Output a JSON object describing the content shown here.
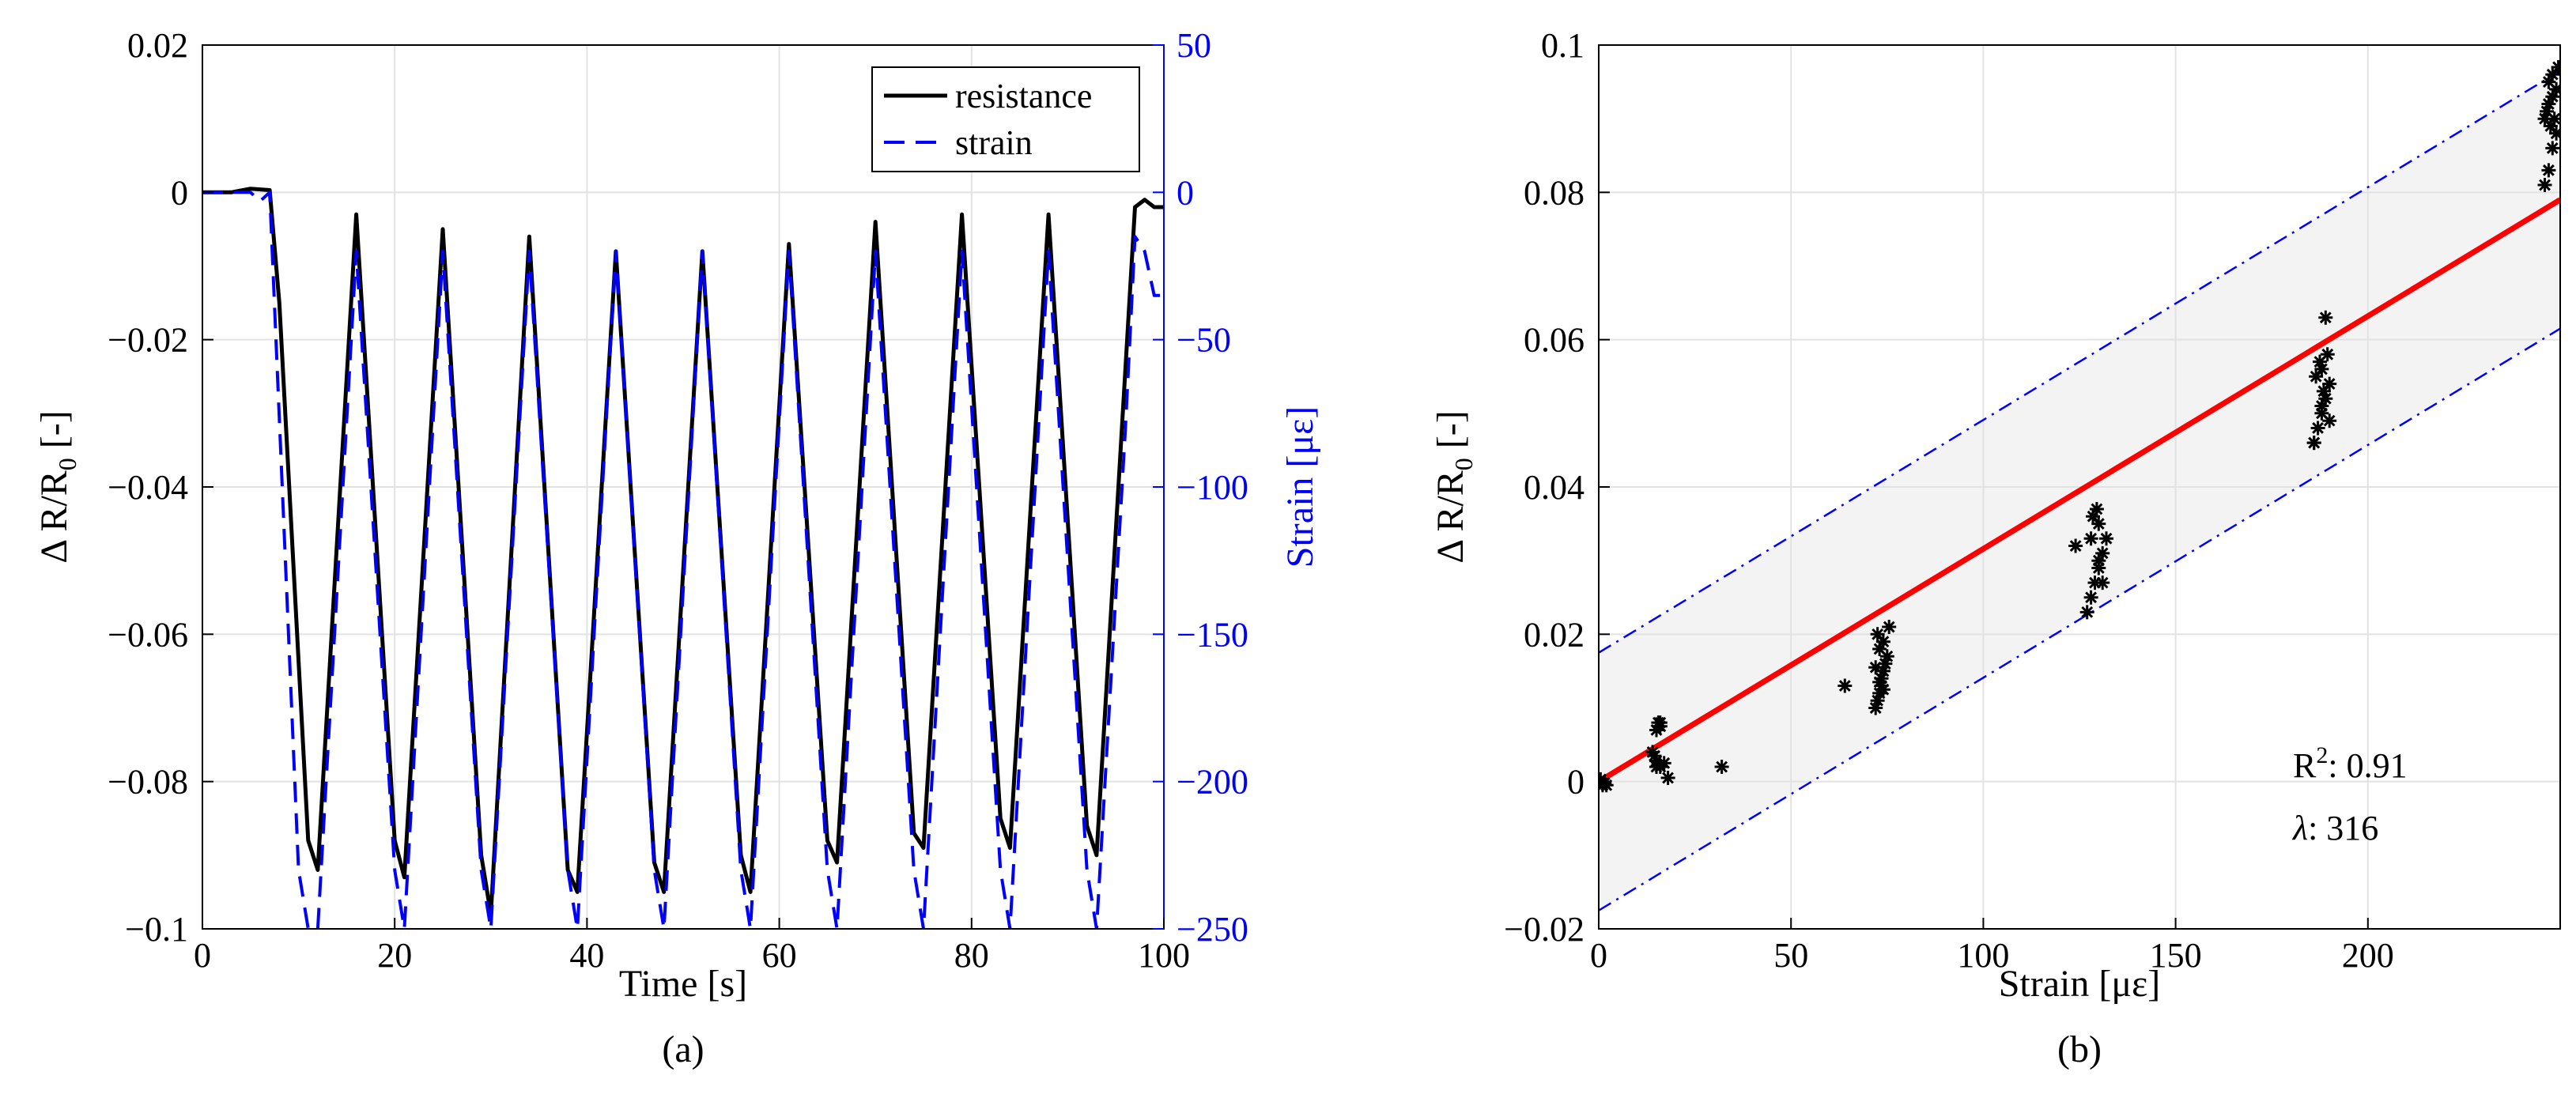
{
  "chart_data": [
    {
      "type": "line",
      "panel_label": "(a)",
      "xlabel": "Time [s]",
      "ylabel_left": "Δ R/R",
      "ylabel_left_sub": "0",
      "ylabel_left_suffix": " [-]",
      "ylabel_right": "Strain [με]",
      "xlim": [
        0,
        100
      ],
      "ylim_left": [
        -0.1,
        0.02
      ],
      "ylim_right": [
        -250,
        50
      ],
      "xticks": [
        0,
        20,
        40,
        60,
        80,
        100
      ],
      "xtick_labels": [
        "0",
        "20",
        "40",
        "60",
        "80",
        "100"
      ],
      "yticks_left": [
        0.02,
        0,
        -0.02,
        -0.04,
        -0.06,
        -0.08,
        -0.1
      ],
      "ytick_labels_left": [
        "0.02",
        "0",
        "−0.02",
        "−0.04",
        "−0.06",
        "−0.08",
        "−0.1"
      ],
      "yticks_right": [
        50,
        0,
        -50,
        -100,
        -150,
        -200,
        -250
      ],
      "ytick_labels_right": [
        "50",
        "0",
        "−50",
        "−100",
        "−150",
        "−200",
        "−250"
      ],
      "grid": true,
      "legend_position": "top-right",
      "series": [
        {
          "name": "resistance",
          "axis": "left",
          "color": "#000000",
          "style": "solid",
          "x": [
            0,
            3,
            5,
            7,
            8,
            11,
            12,
            16,
            20,
            21,
            25,
            29,
            30,
            34,
            38,
            39,
            43,
            47,
            48,
            52,
            56,
            57,
            61,
            65,
            66,
            70,
            74,
            75,
            79,
            83,
            84,
            88,
            92,
            93,
            97,
            98,
            99,
            100
          ],
          "y": [
            0,
            0,
            0.0005,
            0.0003,
            -0.015,
            -0.088,
            -0.092,
            -0.003,
            -0.088,
            -0.093,
            -0.005,
            -0.09,
            -0.098,
            -0.006,
            -0.092,
            -0.095,
            -0.008,
            -0.091,
            -0.095,
            -0.008,
            -0.09,
            -0.095,
            -0.007,
            -0.088,
            -0.091,
            -0.004,
            -0.087,
            -0.089,
            -0.003,
            -0.085,
            -0.089,
            -0.003,
            -0.086,
            -0.09,
            -0.002,
            -0.001,
            -0.002,
            -0.002
          ]
        },
        {
          "name": "strain",
          "axis": "right",
          "color": "#0000ff",
          "style": "dashed",
          "x": [
            0,
            5,
            6,
            7,
            10,
            11,
            12,
            16,
            20,
            21,
            25,
            29,
            30,
            34,
            38,
            39,
            43,
            47,
            48,
            52,
            56,
            57,
            61,
            65,
            66,
            70,
            74,
            75,
            79,
            83,
            84,
            88,
            92,
            93,
            96,
            97,
            98,
            99,
            100
          ],
          "y": [
            0,
            0,
            -3,
            0,
            -230,
            -250,
            -250,
            -20,
            -230,
            -250,
            -20,
            -230,
            -250,
            -20,
            -230,
            -250,
            -20,
            -230,
            -250,
            -20,
            -230,
            -250,
            -20,
            -230,
            -250,
            -20,
            -230,
            -250,
            -20,
            -230,
            -250,
            -20,
            -230,
            -250,
            -80,
            -15,
            -20,
            -35,
            -35
          ]
        }
      ]
    },
    {
      "type": "scatter",
      "panel_label": "(b)",
      "xlabel": "Strain [με]",
      "ylabel": "Δ R/R",
      "ylabel_sub": "0",
      "ylabel_suffix": " [-]",
      "xlim": [
        0,
        250
      ],
      "ylim": [
        -0.02,
        0.1
      ],
      "xticks": [
        0,
        50,
        100,
        150,
        200
      ],
      "xtick_labels": [
        "0",
        "50",
        "100",
        "150",
        "200"
      ],
      "yticks": [
        0.1,
        0.08,
        0.06,
        0.04,
        0.02,
        0,
        -0.02
      ],
      "ytick_labels": [
        "0.1",
        "0.08",
        "0.06",
        "0.04",
        "0.02",
        "0",
        "−0.02"
      ],
      "grid": true,
      "fit": {
        "slope": 0.000316,
        "intercept": 0.0,
        "color": "#ff0000"
      },
      "band": {
        "offset": 0.0175,
        "color": "#0000ff",
        "fill": "#f3f3f3"
      },
      "annotations": {
        "r2_label": "R",
        "r2_sup": "2",
        "r2_value": ": 0.91",
        "lambda_label": "λ",
        "lambda_value": ": 316"
      },
      "points": {
        "x": [
          0,
          1,
          2,
          0.5,
          1.5,
          14,
          15,
          15.5,
          16,
          15,
          14.5,
          16,
          17,
          18,
          15,
          16,
          32,
          64,
          72,
          72.5,
          73,
          73.5,
          74,
          74.5,
          75,
          73,
          74,
          72.5,
          75.5,
          73.5,
          74,
          72,
          73,
          124,
          127,
          128,
          129,
          130,
          131,
          132,
          130,
          128.5,
          129.5,
          131,
          130,
          128,
          186,
          187,
          188,
          189,
          190,
          188,
          187.5,
          189.5,
          189,
          186.5,
          188.5,
          190,
          186,
          188,
          246,
          247,
          248,
          249,
          247.5,
          248.5,
          246.5,
          247,
          248,
          249,
          246,
          247,
          248,
          249.5
        ],
        "y": [
          0,
          -0.0005,
          -0.0005,
          0.0003,
          -0.0002,
          0.004,
          0.002,
          0.008,
          0.0075,
          0.0028,
          0.0035,
          0.002,
          0.0025,
          0.0005,
          0.007,
          0.008,
          0.002,
          0.013,
          0.01,
          0.011,
          0.012,
          0.014,
          0.015,
          0.016,
          0.017,
          0.018,
          0.019,
          0.02,
          0.021,
          0.013,
          0.0125,
          0.0155,
          0.0135,
          0.032,
          0.023,
          0.025,
          0.027,
          0.029,
          0.031,
          0.033,
          0.035,
          0.036,
          0.037,
          0.027,
          0.03,
          0.033,
          0.046,
          0.048,
          0.05,
          0.052,
          0.054,
          0.056,
          0.057,
          0.058,
          0.063,
          0.055,
          0.053,
          0.049,
          0.046,
          0.051,
          0.081,
          0.083,
          0.086,
          0.088,
          0.089,
          0.09,
          0.091,
          0.092,
          0.093,
          0.094,
          0.09,
          0.095,
          0.096,
          0.097
        ]
      }
    }
  ]
}
